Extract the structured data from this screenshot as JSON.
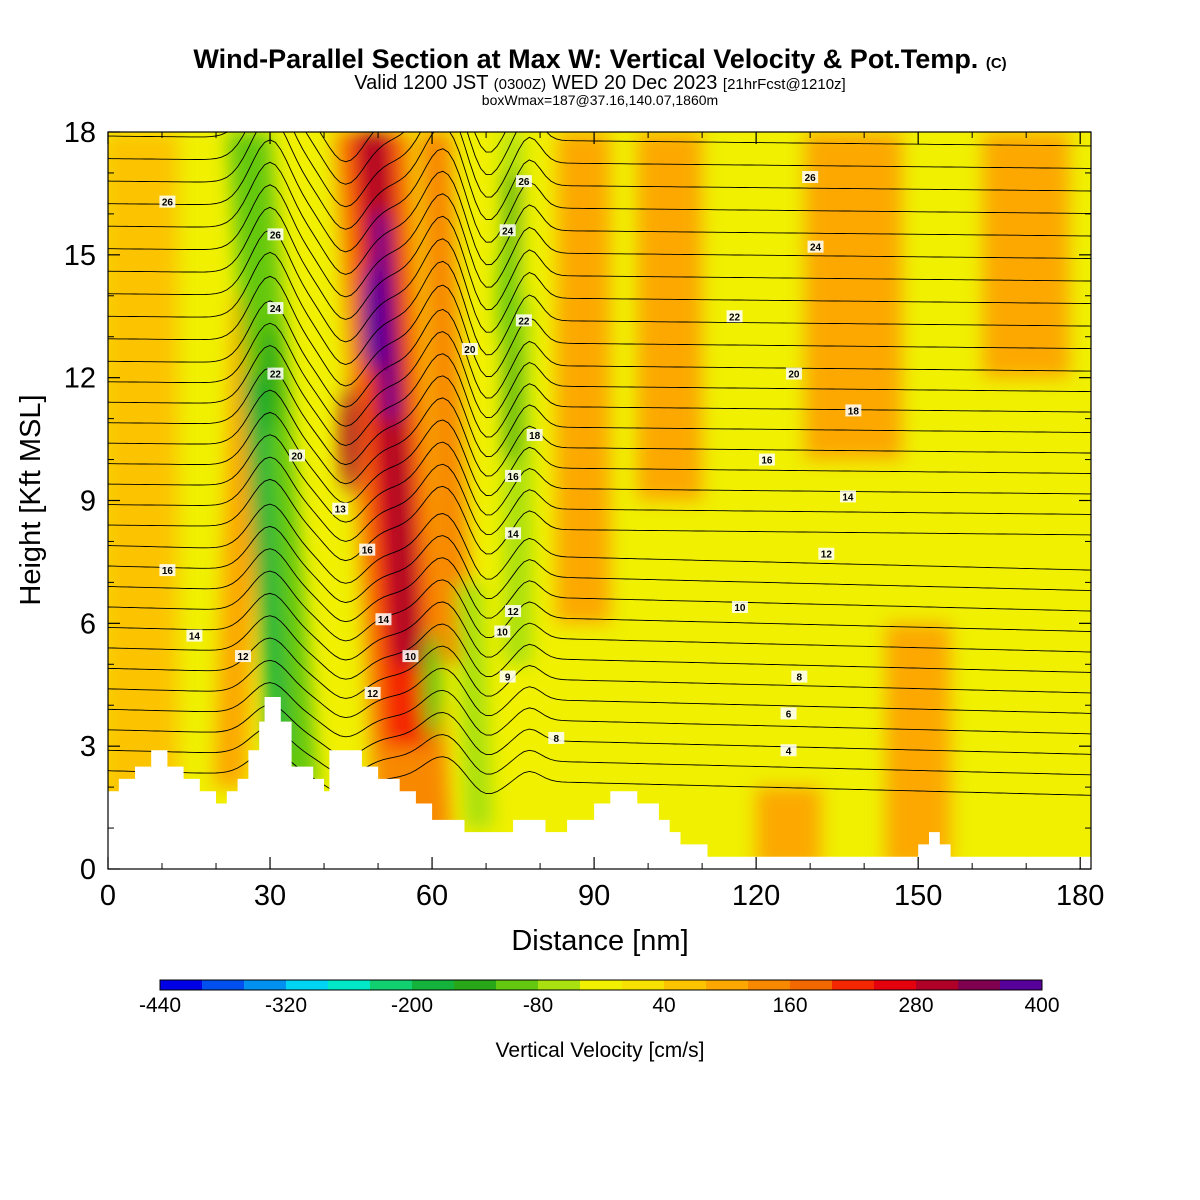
{
  "header": {
    "title": "Wind-Parallel Section at Max W: Vertical Velocity & Pot.Temp.",
    "title_mark": "(C)",
    "subtitle_main": "Valid 1200 JST",
    "subtitle_utc": "(0300Z)",
    "subtitle_date": "WED 20 Dec 2023",
    "subtitle_fcst": "[21hrFcst@1210z]",
    "box_info": "boxWmax=187@37.16,140.07,1860m"
  },
  "chart_data": {
    "type": "heatmap",
    "xlabel": "Distance [nm]",
    "ylabel": "Height [Kft MSL]",
    "xlim": [
      0,
      182
    ],
    "ylim": [
      0,
      18
    ],
    "x_ticks": [
      0,
      30,
      60,
      90,
      120,
      150,
      180
    ],
    "y_ticks": [
      0,
      3,
      6,
      9,
      12,
      15,
      18
    ],
    "colorbar": {
      "label": "Vertical Velocity [cm/s]",
      "min": -440,
      "max": 400,
      "step": 40,
      "tick_labels": [
        -440,
        -320,
        -200,
        -80,
        40,
        160,
        280,
        400
      ],
      "colors": [
        "#0000e6",
        "#0050f0",
        "#0090f0",
        "#00d4f4",
        "#00e8c8",
        "#10d070",
        "#14b43c",
        "#28a818",
        "#64c810",
        "#a8e010",
        "#f0f000",
        "#f8e000",
        "#fcc400",
        "#fca800",
        "#f88800",
        "#f46800",
        "#f42800",
        "#e4000c",
        "#b00028",
        "#800050",
        "#58009a"
      ]
    },
    "w_features": [
      {
        "kind": "updraft",
        "x_nm": 49,
        "z_kft": 13.5,
        "value_cm_s": 400
      },
      {
        "kind": "updraft",
        "x_nm": 45,
        "z_kft": 10.5,
        "value_cm_s": 280
      },
      {
        "kind": "downdraft",
        "x_nm": 30,
        "z_kft": 12,
        "value_cm_s": -160
      },
      {
        "kind": "downdraft",
        "x_nm": 74,
        "z_kft": 14,
        "value_cm_s": -120
      },
      {
        "kind": "downdraft",
        "x_nm": 60,
        "z_kft": 4.5,
        "value_cm_s": -100
      }
    ],
    "theta_contour_labels": [
      {
        "text": "26",
        "x": 11,
        "z": 16.3
      },
      {
        "text": "26",
        "x": 31,
        "z": 15.5
      },
      {
        "text": "24",
        "x": 31,
        "z": 13.7
      },
      {
        "text": "22",
        "x": 31,
        "z": 12.1
      },
      {
        "text": "20",
        "x": 35,
        "z": 10.1
      },
      {
        "text": "13",
        "x": 43,
        "z": 8.8
      },
      {
        "text": "16",
        "x": 48,
        "z": 7.8
      },
      {
        "text": "14",
        "x": 51,
        "z": 6.1
      },
      {
        "text": "12",
        "x": 49,
        "z": 4.3
      },
      {
        "text": "16",
        "x": 11,
        "z": 7.3
      },
      {
        "text": "14",
        "x": 16,
        "z": 5.7
      },
      {
        "text": "12",
        "x": 25,
        "z": 5.2
      },
      {
        "text": "10",
        "x": 56,
        "z": 5.2
      },
      {
        "text": "20",
        "x": 67,
        "z": 12.7
      },
      {
        "text": "26",
        "x": 77,
        "z": 16.8
      },
      {
        "text": "24",
        "x": 74,
        "z": 15.6
      },
      {
        "text": "22",
        "x": 77,
        "z": 13.4
      },
      {
        "text": "18",
        "x": 79,
        "z": 10.6
      },
      {
        "text": "16",
        "x": 75,
        "z": 9.6
      },
      {
        "text": "14",
        "x": 75,
        "z": 8.2
      },
      {
        "text": "12",
        "x": 75,
        "z": 6.3
      },
      {
        "text": "10",
        "x": 73,
        "z": 5.8
      },
      {
        "text": "9",
        "x": 74,
        "z": 4.7
      },
      {
        "text": "8",
        "x": 83,
        "z": 3.2
      },
      {
        "text": "26",
        "x": 130,
        "z": 16.9
      },
      {
        "text": "24",
        "x": 131,
        "z": 15.2
      },
      {
        "text": "22",
        "x": 116,
        "z": 13.5
      },
      {
        "text": "20",
        "x": 127,
        "z": 12.1
      },
      {
        "text": "18",
        "x": 138,
        "z": 11.2
      },
      {
        "text": "16",
        "x": 122,
        "z": 10.0
      },
      {
        "text": "14",
        "x": 137,
        "z": 9.1
      },
      {
        "text": "12",
        "x": 133,
        "z": 7.7
      },
      {
        "text": "10",
        "x": 117,
        "z": 6.4
      },
      {
        "text": "8",
        "x": 128,
        "z": 4.7
      },
      {
        "text": "6",
        "x": 126,
        "z": 3.8
      },
      {
        "text": "4",
        "x": 126,
        "z": 2.9
      }
    ],
    "terrain": [
      {
        "x": 0,
        "z": 1.9
      },
      {
        "x": 2,
        "z": 1.9
      },
      {
        "x": 2,
        "z": 2.2
      },
      {
        "x": 5,
        "z": 2.2
      },
      {
        "x": 5,
        "z": 2.5
      },
      {
        "x": 8,
        "z": 2.5
      },
      {
        "x": 8,
        "z": 2.9
      },
      {
        "x": 11,
        "z": 2.9
      },
      {
        "x": 11,
        "z": 2.5
      },
      {
        "x": 14,
        "z": 2.5
      },
      {
        "x": 14,
        "z": 2.2
      },
      {
        "x": 17,
        "z": 2.2
      },
      {
        "x": 17,
        "z": 1.9
      },
      {
        "x": 20,
        "z": 1.9
      },
      {
        "x": 20,
        "z": 1.6
      },
      {
        "x": 22,
        "z": 1.6
      },
      {
        "x": 22,
        "z": 1.9
      },
      {
        "x": 24,
        "z": 1.9
      },
      {
        "x": 24,
        "z": 2.2
      },
      {
        "x": 26,
        "z": 2.2
      },
      {
        "x": 26,
        "z": 2.9
      },
      {
        "x": 28,
        "z": 2.9
      },
      {
        "x": 28,
        "z": 3.6
      },
      {
        "x": 29,
        "z": 3.6
      },
      {
        "x": 29,
        "z": 4.2
      },
      {
        "x": 32,
        "z": 4.2
      },
      {
        "x": 32,
        "z": 3.6
      },
      {
        "x": 34,
        "z": 3.6
      },
      {
        "x": 34,
        "z": 2.5
      },
      {
        "x": 38,
        "z": 2.5
      },
      {
        "x": 38,
        "z": 2.2
      },
      {
        "x": 40,
        "z": 2.2
      },
      {
        "x": 40,
        "z": 1.9
      },
      {
        "x": 41,
        "z": 1.9
      },
      {
        "x": 41,
        "z": 2.9
      },
      {
        "x": 47,
        "z": 2.9
      },
      {
        "x": 47,
        "z": 2.5
      },
      {
        "x": 50,
        "z": 2.5
      },
      {
        "x": 50,
        "z": 2.2
      },
      {
        "x": 54,
        "z": 2.2
      },
      {
        "x": 54,
        "z": 1.9
      },
      {
        "x": 57,
        "z": 1.9
      },
      {
        "x": 57,
        "z": 1.6
      },
      {
        "x": 60,
        "z": 1.6
      },
      {
        "x": 60,
        "z": 1.2
      },
      {
        "x": 66,
        "z": 1.2
      },
      {
        "x": 66,
        "z": 0.9
      },
      {
        "x": 75,
        "z": 0.9
      },
      {
        "x": 75,
        "z": 1.2
      },
      {
        "x": 81,
        "z": 1.2
      },
      {
        "x": 81,
        "z": 0.9
      },
      {
        "x": 85,
        "z": 0.9
      },
      {
        "x": 85,
        "z": 1.2
      },
      {
        "x": 90,
        "z": 1.2
      },
      {
        "x": 90,
        "z": 1.6
      },
      {
        "x": 93,
        "z": 1.6
      },
      {
        "x": 93,
        "z": 1.9
      },
      {
        "x": 98,
        "z": 1.9
      },
      {
        "x": 98,
        "z": 1.6
      },
      {
        "x": 102,
        "z": 1.6
      },
      {
        "x": 102,
        "z": 1.2
      },
      {
        "x": 104,
        "z": 1.2
      },
      {
        "x": 104,
        "z": 0.9
      },
      {
        "x": 106,
        "z": 0.9
      },
      {
        "x": 106,
        "z": 0.6
      },
      {
        "x": 111,
        "z": 0.6
      },
      {
        "x": 111,
        "z": 0.3
      },
      {
        "x": 150,
        "z": 0.3
      },
      {
        "x": 150,
        "z": 0.6
      },
      {
        "x": 152,
        "z": 0.6
      },
      {
        "x": 152,
        "z": 0.9
      },
      {
        "x": 154,
        "z": 0.9
      },
      {
        "x": 154,
        "z": 0.6
      },
      {
        "x": 156,
        "z": 0.6
      },
      {
        "x": 156,
        "z": 0.3
      },
      {
        "x": 182,
        "z": 0.3
      }
    ]
  }
}
